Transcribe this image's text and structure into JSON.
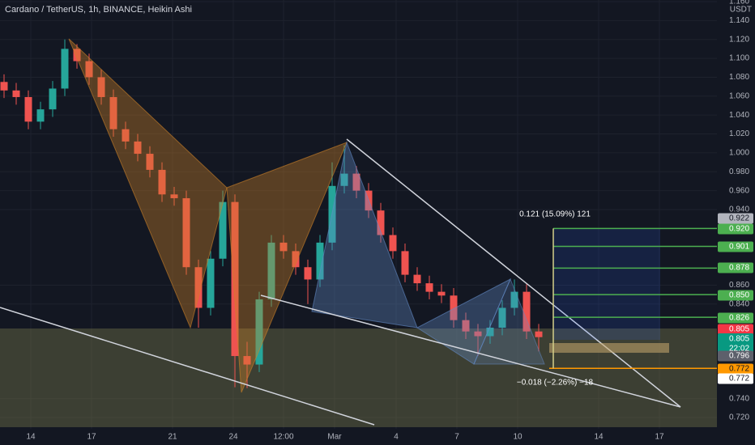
{
  "header": {
    "title": "Cardano / TetherUS, 1h, BINANCE, Heikin Ashi"
  },
  "chart_data": {
    "type": "candlestick",
    "up_color": "#26a69a",
    "down_color": "#ef5350",
    "ohlc": [
      [
        1.075,
        1.083,
        1.058,
        1.066
      ],
      [
        1.066,
        1.074,
        1.051,
        1.059
      ],
      [
        1.059,
        1.066,
        1.025,
        1.033
      ],
      [
        1.033,
        1.054,
        1.025,
        1.046
      ],
      [
        1.046,
        1.076,
        1.038,
        1.068
      ],
      [
        1.068,
        1.12,
        1.06,
        1.11
      ],
      [
        1.11,
        1.115,
        1.089,
        1.097
      ],
      [
        1.097,
        1.105,
        1.072,
        1.08
      ],
      [
        1.08,
        1.088,
        1.051,
        1.059
      ],
      [
        1.059,
        1.067,
        1.017,
        1.025
      ],
      [
        1.025,
        1.033,
        1.004,
        1.012
      ],
      [
        1.012,
        1.02,
        0.991,
        0.999
      ],
      [
        0.999,
        1.007,
        0.974,
        0.982
      ],
      [
        0.982,
        0.99,
        0.948,
        0.956
      ],
      [
        0.956,
        0.964,
        0.944,
        0.952
      ],
      [
        0.952,
        0.96,
        0.871,
        0.879
      ],
      [
        0.879,
        0.887,
        0.815,
        0.836
      ],
      [
        0.836,
        0.896,
        0.828,
        0.888
      ],
      [
        0.888,
        0.96,
        0.88,
        0.948
      ],
      [
        0.948,
        0.956,
        0.752,
        0.785
      ],
      [
        0.785,
        0.8,
        0.751,
        0.776
      ],
      [
        0.776,
        0.853,
        0.768,
        0.845
      ],
      [
        0.845,
        0.913,
        0.837,
        0.905
      ],
      [
        0.905,
        0.913,
        0.888,
        0.896
      ],
      [
        0.896,
        0.904,
        0.871,
        0.879
      ],
      [
        0.879,
        0.887,
        0.84,
        0.866
      ],
      [
        0.866,
        0.913,
        0.858,
        0.905
      ],
      [
        0.905,
        0.99,
        0.897,
        0.965
      ],
      [
        0.965,
        1.008,
        0.957,
        0.978
      ],
      [
        0.978,
        0.986,
        0.952,
        0.96
      ],
      [
        0.96,
        0.968,
        0.931,
        0.939
      ],
      [
        0.939,
        0.947,
        0.905,
        0.913
      ],
      [
        0.913,
        0.921,
        0.888,
        0.896
      ],
      [
        0.896,
        0.904,
        0.863,
        0.871
      ],
      [
        0.871,
        0.879,
        0.854,
        0.862
      ],
      [
        0.862,
        0.87,
        0.845,
        0.853
      ],
      [
        0.853,
        0.861,
        0.841,
        0.849
      ],
      [
        0.849,
        0.857,
        0.815,
        0.823
      ],
      [
        0.823,
        0.831,
        0.803,
        0.811
      ],
      [
        0.811,
        0.819,
        0.785,
        0.806
      ],
      [
        0.806,
        0.823,
        0.798,
        0.815
      ],
      [
        0.815,
        0.844,
        0.807,
        0.836
      ],
      [
        0.836,
        0.866,
        0.828,
        0.853
      ],
      [
        0.853,
        0.861,
        0.803,
        0.811
      ],
      [
        0.811,
        0.819,
        0.79,
        0.805
      ]
    ],
    "ylim": [
      0.708,
      1.1617
    ],
    "y_unit": "USDT",
    "yticks": [
      {
        "value": 1.16,
        "label": "1.160"
      },
      {
        "value": 1.14,
        "label": "1.140"
      },
      {
        "value": 1.12,
        "label": "1.120"
      },
      {
        "value": 1.1,
        "label": "1.100"
      },
      {
        "value": 1.08,
        "label": "1.080"
      },
      {
        "value": 1.06,
        "label": "1.060"
      },
      {
        "value": 1.04,
        "label": "1.040"
      },
      {
        "value": 1.02,
        "label": "1.020"
      },
      {
        "value": 1.0,
        "label": "1.000"
      },
      {
        "value": 0.98,
        "label": "0.980"
      },
      {
        "value": 0.96,
        "label": "0.960"
      },
      {
        "value": 0.94,
        "label": "0.940"
      },
      {
        "value": 0.86,
        "label": "0.860"
      },
      {
        "value": 0.84,
        "label": "0.840"
      },
      {
        "value": 0.74,
        "label": "0.740"
      },
      {
        "value": 0.72,
        "label": "0.720"
      }
    ],
    "grid": true,
    "xtick_labels": [
      "14",
      "17",
      "21",
      "24",
      "12:00",
      "Mar",
      "4",
      "7",
      "10",
      "14",
      "17"
    ],
    "price_labels": [
      {
        "value": 0.922,
        "label": "0.922",
        "color": "#b2b5be",
        "text_color": "#131722"
      },
      {
        "value": 0.92,
        "label": "0.920",
        "color": "#4caf50",
        "text_color": "#ffffff"
      },
      {
        "value": 0.901,
        "label": "0.901",
        "color": "#4caf50",
        "text_color": "#ffffff"
      },
      {
        "value": 0.878,
        "label": "0.878",
        "color": "#4caf50",
        "text_color": "#ffffff"
      },
      {
        "value": 0.85,
        "label": "0.850",
        "color": "#4caf50",
        "text_color": "#ffffff"
      },
      {
        "value": 0.826,
        "label": "0.826",
        "color": "#4caf50",
        "text_color": "#ffffff"
      },
      {
        "value": 0.805,
        "label": "0.805",
        "color": "#f23645",
        "text_color": "#ffffff"
      },
      {
        "value": 0.805,
        "label": "0.805",
        "color": "#089981",
        "text_color": "#ffffff",
        "sub": "22:02"
      },
      {
        "value": 0.796,
        "label": "0.796",
        "color": "#5d606b",
        "text_color": "#ffffff"
      },
      {
        "value": 0.772,
        "label": "0.772",
        "color": "#ff9800",
        "text_color": "#131722"
      },
      {
        "value": 0.772,
        "label": "0.772",
        "color": "#ffffff",
        "text_color": "#131722"
      }
    ],
    "target_levels": [
      0.92,
      0.901,
      0.878,
      0.85,
      0.826
    ],
    "target_color": "#4caf50",
    "stop_level": 0.772,
    "stop_color": "#ff9800",
    "measure_up": "0.121 (15.09%) 121",
    "measure_down": "−0.018 (−2.26%) −18"
  }
}
